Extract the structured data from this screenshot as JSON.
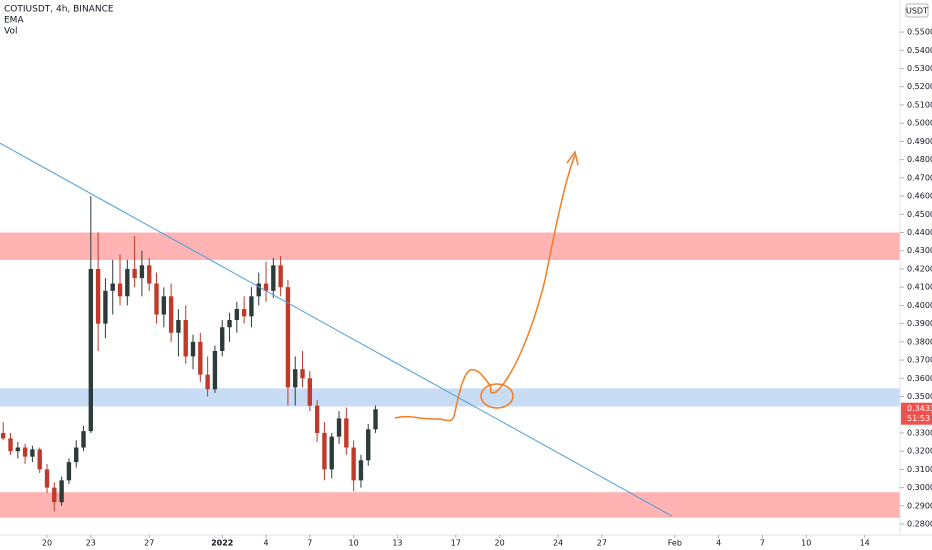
{
  "chart_data": {
    "type": "candlestick",
    "title": "COTIUSDT, 4h, BINANCE",
    "indicators": [
      "EMA",
      "Vol"
    ],
    "currency": "USDT",
    "colors": {
      "up": "#2e3b3b",
      "down": "#c0392b",
      "wick": "#3b4545"
    },
    "x": [
      -3,
      -2.5,
      -2,
      -1.5,
      -1,
      -0.5,
      0,
      0.5,
      1,
      1.5,
      2,
      2.5,
      3,
      3.5,
      4,
      4.5,
      5,
      5.5,
      6,
      6.5,
      7,
      7.5,
      8,
      8.5,
      9,
      9.5,
      10,
      10.5,
      11,
      11.5,
      12,
      12.5,
      13,
      13.5,
      14,
      14.5,
      15,
      15.5,
      16,
      16.5,
      17,
      17.5,
      18,
      18.5,
      19,
      19.5,
      20,
      20.5,
      21,
      21.5,
      22,
      22.5
    ],
    "open": [
      0.33,
      0.327,
      0.32,
      0.322,
      0.317,
      0.321,
      0.31,
      0.3,
      0.292,
      0.304,
      0.314,
      0.322,
      0.331,
      0.42,
      0.39,
      0.408,
      0.412,
      0.405,
      0.42,
      0.415,
      0.422,
      0.412,
      0.395,
      0.405,
      0.385,
      0.392,
      0.372,
      0.38,
      0.362,
      0.354,
      0.375,
      0.388,
      0.392,
      0.398,
      0.394,
      0.405,
      0.412,
      0.408,
      0.422,
      0.41,
      0.355,
      0.365,
      0.36,
      0.345,
      0.33,
      0.31,
      0.328,
      0.338,
      0.322,
      0.304,
      0.315,
      0.332
    ],
    "high": [
      0.336,
      0.33,
      0.325,
      0.324,
      0.323,
      0.322,
      0.313,
      0.303,
      0.306,
      0.316,
      0.326,
      0.334,
      0.46,
      0.44,
      0.415,
      0.425,
      0.428,
      0.425,
      0.438,
      0.43,
      0.426,
      0.418,
      0.41,
      0.412,
      0.398,
      0.4,
      0.384,
      0.385,
      0.372,
      0.378,
      0.392,
      0.396,
      0.402,
      0.405,
      0.41,
      0.418,
      0.424,
      0.426,
      0.427,
      0.414,
      0.372,
      0.375,
      0.364,
      0.348,
      0.336,
      0.33,
      0.342,
      0.344,
      0.326,
      0.318,
      0.335,
      0.345
    ],
    "low": [
      0.326,
      0.318,
      0.316,
      0.313,
      0.314,
      0.308,
      0.297,
      0.287,
      0.29,
      0.302,
      0.311,
      0.32,
      0.33,
      0.375,
      0.382,
      0.395,
      0.4,
      0.4,
      0.41,
      0.405,
      0.408,
      0.39,
      0.388,
      0.38,
      0.372,
      0.368,
      0.365,
      0.358,
      0.35,
      0.352,
      0.372,
      0.38,
      0.385,
      0.39,
      0.388,
      0.4,
      0.402,
      0.404,
      0.405,
      0.345,
      0.345,
      0.355,
      0.342,
      0.325,
      0.304,
      0.305,
      0.324,
      0.318,
      0.298,
      0.3,
      0.312,
      0.33
    ],
    "close": [
      0.327,
      0.32,
      0.322,
      0.317,
      0.321,
      0.31,
      0.3,
      0.292,
      0.304,
      0.314,
      0.322,
      0.331,
      0.42,
      0.39,
      0.408,
      0.412,
      0.405,
      0.42,
      0.415,
      0.422,
      0.412,
      0.395,
      0.405,
      0.385,
      0.392,
      0.372,
      0.38,
      0.362,
      0.354,
      0.375,
      0.388,
      0.392,
      0.398,
      0.394,
      0.405,
      0.412,
      0.408,
      0.422,
      0.41,
      0.355,
      0.365,
      0.36,
      0.345,
      0.33,
      0.31,
      0.328,
      0.338,
      0.322,
      0.304,
      0.315,
      0.332,
      0.343
    ],
    "xlim": [
      -3.22,
      58.42
    ],
    "xticks": [
      {
        "value": 0,
        "label": "20"
      },
      {
        "value": 3,
        "label": "23"
      },
      {
        "value": 7,
        "label": "27"
      },
      {
        "value": 12,
        "label": "2022"
      },
      {
        "value": 15,
        "label": "4"
      },
      {
        "value": 18,
        "label": "7"
      },
      {
        "value": 21,
        "label": "10"
      },
      {
        "value": 24,
        "label": "13"
      },
      {
        "value": 28,
        "label": "17"
      },
      {
        "value": 31,
        "label": "20"
      },
      {
        "value": 35,
        "label": "24"
      },
      {
        "value": 38,
        "label": "27"
      },
      {
        "value": 43,
        "label": "Feb"
      },
      {
        "value": 46,
        "label": "4"
      },
      {
        "value": 49,
        "label": "7"
      },
      {
        "value": 52,
        "label": "10"
      },
      {
        "value": 56,
        "label": "14"
      }
    ],
    "ylim": [
      0.274,
      0.5676
    ],
    "yticks": [
      {
        "value": 0.28,
        "label": "0.2800"
      },
      {
        "value": 0.29,
        "label": "0.2900"
      },
      {
        "value": 0.3,
        "label": "0.3000"
      },
      {
        "value": 0.31,
        "label": "0.3100"
      },
      {
        "value": 0.32,
        "label": "0.3200"
      },
      {
        "value": 0.33,
        "label": "0.3300"
      },
      {
        "value": 0.35,
        "label": "0.3500"
      },
      {
        "value": 0.36,
        "label": "0.3600"
      },
      {
        "value": 0.37,
        "label": "0.3700"
      },
      {
        "value": 0.38,
        "label": "0.3800"
      },
      {
        "value": 0.39,
        "label": "0.3900"
      },
      {
        "value": 0.4,
        "label": "0.4000"
      },
      {
        "value": 0.41,
        "label": "0.4100"
      },
      {
        "value": 0.42,
        "label": "0.4200"
      },
      {
        "value": 0.43,
        "label": "0.4300"
      },
      {
        "value": 0.44,
        "label": "0.4400"
      },
      {
        "value": 0.45,
        "label": "0.4500"
      },
      {
        "value": 0.46,
        "label": "0.4600"
      },
      {
        "value": 0.47,
        "label": "0.4700"
      },
      {
        "value": 0.48,
        "label": "0.4800"
      },
      {
        "value": 0.49,
        "label": "0.4900"
      },
      {
        "value": 0.5,
        "label": "0.5000"
      },
      {
        "value": 0.51,
        "label": "0.5100"
      },
      {
        "value": 0.52,
        "label": "0.5200"
      },
      {
        "value": 0.53,
        "label": "0.5300"
      },
      {
        "value": 0.54,
        "label": "0.5400"
      },
      {
        "value": 0.55,
        "label": "0.5500"
      }
    ],
    "zones": [
      {
        "low": 0.4249,
        "high": 0.44,
        "color": "#ffb3b3"
      },
      {
        "low": 0.3445,
        "high": 0.3545,
        "color": "#c9dcf5"
      },
      {
        "low": 0.2835,
        "high": 0.2975,
        "color": "#ffb3b3"
      }
    ],
    "trendline": {
      "x": [
        -3.22,
        42.8
      ],
      "y": [
        0.489,
        0.2844
      ],
      "color": "#4a9fd8"
    },
    "last_price": 0.3433,
    "countdown": "51:53",
    "last_price_color": "#ef5350"
  }
}
